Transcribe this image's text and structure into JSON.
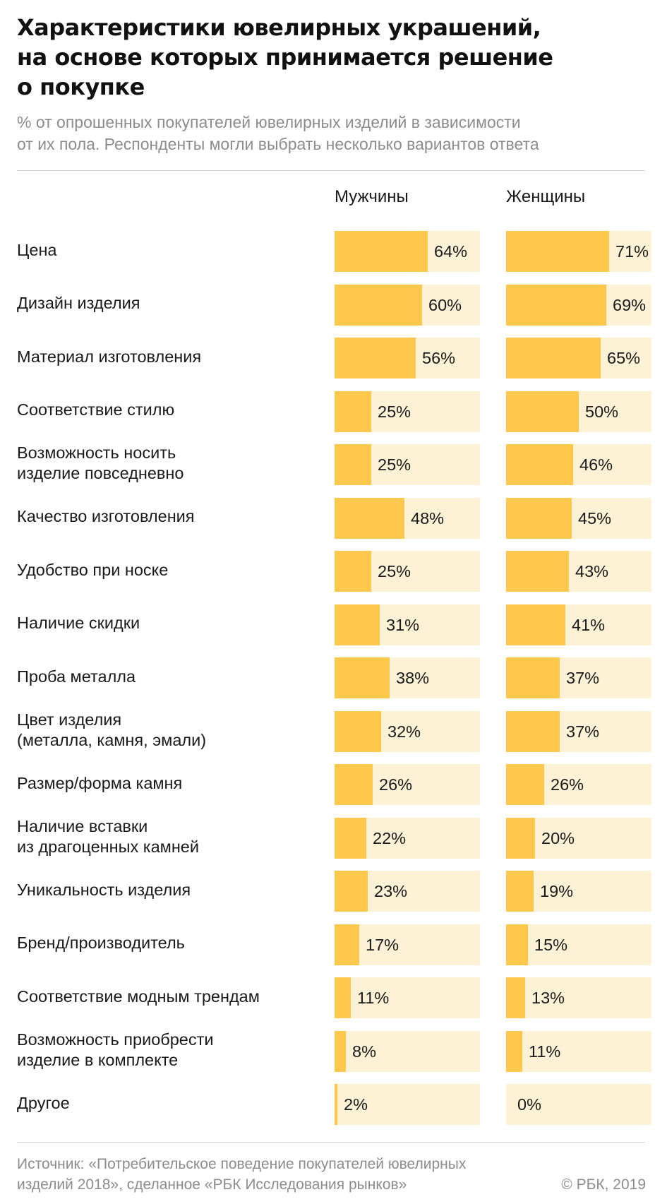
{
  "title": "Характеристики ювелирных украшений,\nна основе которых принимается решение\nо покупке",
  "subtitle": "% от опрошенных покупателей ювелирных изделий в зависимости\nот их пола. Респонденты могли выбрать несколько вариантов ответа",
  "source": "Источник:  «Потребительское поведение покупателей ювелирных\nизделий 2018», сделанное «РБК Исследования рынков»",
  "copyright": "© РБК, 2019",
  "colors": {
    "fill": "#fdc84c",
    "track": "#fdf2d6"
  },
  "chart_data": {
    "type": "bar",
    "orientation": "horizontal",
    "title": "Характеристики ювелирных украшений, на основе которых принимается решение о покупке",
    "categories": [
      "Цена",
      "Дизайн изделия",
      "Материал изготовления",
      "Соответствие стилю",
      "Возможность носить\nизделие повседневно",
      "Качество изготовления",
      "Удобство при носке",
      "Наличие скидки",
      "Проба металла",
      "Цвет изделия\n(металла, камня, эмали)",
      "Размер/форма камня",
      "Наличие вставки\nиз драгоценных камней",
      "Уникальность изделия",
      "Бренд/производитель",
      "Соответствие модным трендам",
      "Возможность приобрести\nизделие в комплекте",
      "Другое"
    ],
    "series": [
      {
        "name": "Мужчины",
        "values": [
          64,
          60,
          56,
          25,
          25,
          48,
          25,
          31,
          38,
          32,
          26,
          22,
          23,
          17,
          11,
          8,
          2
        ]
      },
      {
        "name": "Женщины",
        "values": [
          71,
          69,
          65,
          50,
          46,
          45,
          43,
          41,
          37,
          37,
          26,
          20,
          19,
          15,
          13,
          11,
          0
        ]
      }
    ],
    "unit": "%",
    "xlim": [
      0,
      100
    ],
    "grid": false,
    "legend": "column headers"
  }
}
